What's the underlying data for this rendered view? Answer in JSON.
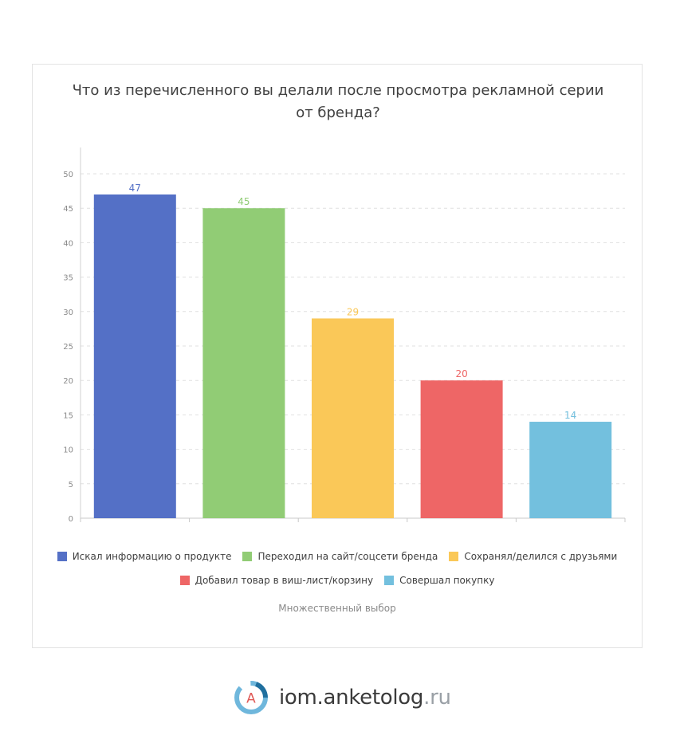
{
  "chart_data": {
    "type": "bar",
    "title": "Что из перечисленного вы делали после просмотра рекламной серии от бренда?",
    "categories": [
      "Искал информацию о продукте",
      "Переходил на сайт/соцсети бренда",
      "Сохранял/делился с друзьями",
      "Добавил товар в виш-лист/корзину",
      "Совершал покупку"
    ],
    "values": [
      47,
      45,
      29,
      20,
      14
    ],
    "colors": [
      "#5470c6",
      "#91cc75",
      "#fac858",
      "#ee6666",
      "#73c0de"
    ],
    "ylim": [
      0,
      50
    ],
    "yticks": [
      "0",
      "5",
      "10",
      "15",
      "20",
      "25",
      "30",
      "35",
      "40",
      "45",
      "50"
    ],
    "grid": true,
    "legend_position": "bottom",
    "data_labels": [
      "47",
      "45",
      "29",
      "20",
      "14"
    ],
    "footnote": "Множественный выбор"
  },
  "brand": {
    "logo_letter": "A",
    "name": "iom.anketolog",
    "tld": ".ru",
    "logo_icon": "anketolog-logo-icon"
  }
}
